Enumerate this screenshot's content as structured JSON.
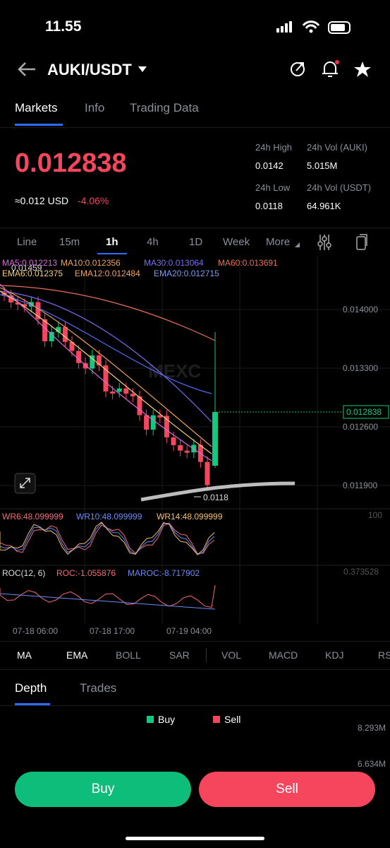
{
  "status": {
    "time": "11.55"
  },
  "header": {
    "pair": "AUKI/USDT"
  },
  "tabs": [
    "Markets",
    "Info",
    "Trading Data"
  ],
  "price": {
    "last": "0.012838",
    "approx": "≈0.012 USD",
    "change": "-4.06%"
  },
  "stats": [
    {
      "label": "24h High",
      "value": "0.0142"
    },
    {
      "label": "24h Vol (AUKI)",
      "value": "5.015M"
    },
    {
      "label": "24h Low",
      "value": "0.0118"
    },
    {
      "label": "24h Vol  (USDT)",
      "value": "64.961K"
    }
  ],
  "intervals": [
    "Line",
    "15m",
    "1h",
    "4h",
    "1D",
    "Week",
    "More"
  ],
  "ma_legend": [
    "MA5:0.012213",
    "MA10:0.012356",
    "MA30:0.013064",
    "MA60:0.013691",
    "EMA6:0.012375",
    "EMA12:0.012484",
    "EMA20:0.012715"
  ],
  "price_axis": [
    "0.014000",
    "0.013300",
    "0.012600",
    "0.011900"
  ],
  "current_price": "0.012838",
  "high_mark": "0.01459",
  "low_mark": "0.0118",
  "watermark": "MEXC",
  "wr_legend": [
    "WR6:48.099999",
    "WR10:48.099999",
    "WR14:48.099999"
  ],
  "wr_axis": "100",
  "roc_legend": [
    "ROC(12, 6)",
    "ROC:-1.055876",
    "MAROC:-8.717902"
  ],
  "roc_axis": "0.373528",
  "time_axis": [
    "07-18 06:00",
    "07-18 17:00",
    "07-19 04:00"
  ],
  "indicators": [
    "MA",
    "EMA",
    "BOLL",
    "SAR",
    "VOL",
    "MACD",
    "KDJ",
    "RS"
  ],
  "depth_tabs": [
    "Depth",
    "Trades"
  ],
  "depth_legend": [
    "Buy",
    "Sell"
  ],
  "depth_axis": [
    "8.293M",
    "6.634M"
  ],
  "buttons": [
    "Buy",
    "Sell"
  ]
}
